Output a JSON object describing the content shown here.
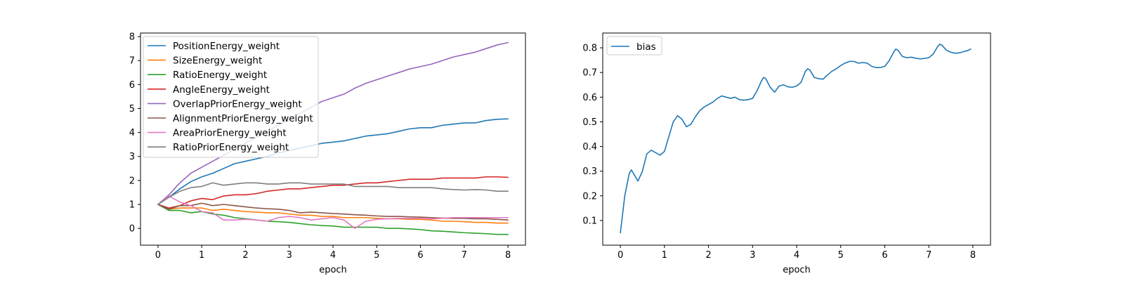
{
  "chart_data": [
    {
      "type": "line",
      "xlabel": "epoch",
      "ylabel": "",
      "xlim": [
        -0.4,
        8.4
      ],
      "ylim": [
        -0.7,
        8.15
      ],
      "xticks": [
        "0",
        "1",
        "2",
        "3",
        "4",
        "5",
        "6",
        "7",
        "8"
      ],
      "yticks": [
        "0",
        "1",
        "2",
        "3",
        "4",
        "5",
        "6",
        "7",
        "8"
      ],
      "grid": false,
      "legend_position": "top-left",
      "series": [
        {
          "name": "PositionEnergy_weight",
          "color": "#1f77b4",
          "x": [
            0,
            0.25,
            0.5,
            0.75,
            1,
            1.25,
            1.5,
            1.75,
            2,
            2.25,
            2.5,
            2.75,
            3,
            3.25,
            3.5,
            3.75,
            4,
            4.25,
            4.5,
            4.75,
            5,
            5.25,
            5.5,
            5.75,
            6,
            6.25,
            6.5,
            6.75,
            7,
            7.25,
            7.5,
            7.75,
            8
          ],
          "y": [
            1.0,
            1.3,
            1.65,
            1.95,
            2.15,
            2.3,
            2.5,
            2.7,
            2.8,
            2.9,
            3.0,
            3.15,
            3.25,
            3.35,
            3.45,
            3.55,
            3.6,
            3.65,
            3.75,
            3.85,
            3.9,
            3.95,
            4.05,
            4.15,
            4.2,
            4.2,
            4.3,
            4.35,
            4.4,
            4.4,
            4.5,
            4.55,
            4.57
          ]
        },
        {
          "name": "SizeEnergy_weight",
          "color": "#ff7f0e",
          "x": [
            0,
            0.25,
            0.5,
            0.75,
            1,
            1.25,
            1.5,
            1.75,
            2,
            2.25,
            2.5,
            2.75,
            3,
            3.25,
            3.5,
            3.75,
            4,
            4.25,
            4.5,
            4.75,
            5,
            5.25,
            5.5,
            5.75,
            6,
            6.25,
            6.5,
            6.75,
            7,
            7.25,
            7.5,
            7.75,
            8
          ],
          "y": [
            1.0,
            0.8,
            0.85,
            0.85,
            0.85,
            0.75,
            0.8,
            0.75,
            0.7,
            0.68,
            0.65,
            0.65,
            0.6,
            0.55,
            0.55,
            0.5,
            0.5,
            0.45,
            0.45,
            0.45,
            0.42,
            0.4,
            0.4,
            0.38,
            0.38,
            0.35,
            0.3,
            0.3,
            0.28,
            0.25,
            0.25,
            0.22,
            0.22
          ]
        },
        {
          "name": "RatioEnergy_weight",
          "color": "#2ca02c",
          "x": [
            0,
            0.25,
            0.5,
            0.75,
            1,
            1.25,
            1.5,
            1.75,
            2,
            2.25,
            2.5,
            2.75,
            3,
            3.25,
            3.5,
            3.75,
            4,
            4.25,
            4.5,
            4.75,
            5,
            5.25,
            5.5,
            5.75,
            6,
            6.25,
            6.5,
            6.75,
            7,
            7.25,
            7.5,
            7.75,
            8
          ],
          "y": [
            1.0,
            0.75,
            0.75,
            0.65,
            0.7,
            0.6,
            0.55,
            0.45,
            0.4,
            0.35,
            0.3,
            0.28,
            0.25,
            0.2,
            0.15,
            0.12,
            0.1,
            0.05,
            0.05,
            0.05,
            0.05,
            0.0,
            0.0,
            -0.02,
            -0.05,
            -0.1,
            -0.12,
            -0.15,
            -0.18,
            -0.2,
            -0.22,
            -0.25,
            -0.25
          ]
        },
        {
          "name": "AngleEnergy_weight",
          "color": "#d62728",
          "x": [
            0,
            0.25,
            0.5,
            0.75,
            1,
            1.25,
            1.5,
            1.75,
            2,
            2.25,
            2.5,
            2.75,
            3,
            3.25,
            3.5,
            3.75,
            4,
            4.25,
            4.5,
            4.75,
            5,
            5.25,
            5.5,
            5.75,
            6,
            6.25,
            6.5,
            6.75,
            7,
            7.25,
            7.5,
            7.75,
            8
          ],
          "y": [
            1.0,
            0.85,
            0.95,
            1.15,
            1.25,
            1.2,
            1.35,
            1.4,
            1.4,
            1.45,
            1.55,
            1.6,
            1.65,
            1.65,
            1.7,
            1.75,
            1.8,
            1.8,
            1.85,
            1.9,
            1.9,
            1.95,
            2.0,
            2.05,
            2.05,
            2.05,
            2.1,
            2.1,
            2.1,
            2.1,
            2.15,
            2.15,
            2.13
          ]
        },
        {
          "name": "OverlapPriorEnergy_weight",
          "color": "#9467bd",
          "x": [
            0,
            0.25,
            0.5,
            0.75,
            1,
            1.25,
            1.5,
            1.75,
            2,
            2.25,
            2.5,
            2.75,
            3,
            3.25,
            3.5,
            3.75,
            4,
            4.25,
            4.5,
            4.75,
            5,
            5.25,
            5.5,
            5.75,
            6,
            6.25,
            6.5,
            6.75,
            7,
            7.25,
            7.5,
            7.75,
            8
          ],
          "y": [
            1.0,
            1.4,
            1.9,
            2.3,
            2.55,
            2.8,
            3.05,
            3.3,
            3.55,
            3.8,
            4.05,
            4.3,
            4.55,
            4.8,
            5.05,
            5.3,
            5.45,
            5.6,
            5.85,
            6.05,
            6.2,
            6.35,
            6.5,
            6.65,
            6.75,
            6.85,
            7.0,
            7.15,
            7.25,
            7.35,
            7.5,
            7.65,
            7.75
          ]
        },
        {
          "name": "AlignmentPriorEnergy_weight",
          "color": "#8c564b",
          "x": [
            0,
            0.25,
            0.5,
            0.75,
            1,
            1.25,
            1.5,
            1.75,
            2,
            2.25,
            2.5,
            2.75,
            3,
            3.25,
            3.5,
            3.75,
            4,
            4.25,
            4.5,
            4.75,
            5,
            5.25,
            5.5,
            5.75,
            6,
            6.25,
            6.5,
            6.75,
            7,
            7.25,
            7.5,
            7.75,
            8
          ],
          "y": [
            1.0,
            0.8,
            0.95,
            0.95,
            1.05,
            0.95,
            1.0,
            0.95,
            0.9,
            0.85,
            0.82,
            0.8,
            0.75,
            0.65,
            0.68,
            0.65,
            0.62,
            0.6,
            0.57,
            0.55,
            0.52,
            0.5,
            0.5,
            0.48,
            0.47,
            0.45,
            0.43,
            0.42,
            0.42,
            0.4,
            0.4,
            0.38,
            0.35
          ]
        },
        {
          "name": "AreaPriorEnergy_weight",
          "color": "#e377c2",
          "x": [
            0,
            0.25,
            0.5,
            0.75,
            1,
            1.25,
            1.5,
            1.75,
            2,
            2.25,
            2.5,
            2.75,
            3,
            3.25,
            3.5,
            3.75,
            4,
            4.25,
            4.5,
            4.75,
            5,
            5.25,
            5.5,
            5.75,
            6,
            6.25,
            6.5,
            6.75,
            7,
            7.25,
            7.5,
            7.75,
            8
          ],
          "y": [
            1.0,
            1.35,
            1.1,
            0.95,
            0.7,
            0.65,
            0.35,
            0.35,
            0.38,
            0.35,
            0.3,
            0.45,
            0.5,
            0.45,
            0.35,
            0.4,
            0.45,
            0.35,
            0.0,
            0.3,
            0.38,
            0.4,
            0.42,
            0.42,
            0.42,
            0.4,
            0.42,
            0.45,
            0.45,
            0.45,
            0.45,
            0.45,
            0.45
          ]
        },
        {
          "name": "RatioPriorEnergy_weight",
          "color": "#7f7f7f",
          "x": [
            0,
            0.25,
            0.5,
            0.75,
            1,
            1.25,
            1.5,
            1.75,
            2,
            2.25,
            2.5,
            2.75,
            3,
            3.25,
            3.5,
            3.75,
            4,
            4.25,
            4.5,
            4.75,
            5,
            5.25,
            5.5,
            5.75,
            6,
            6.25,
            6.5,
            6.75,
            7,
            7.25,
            7.5,
            7.75,
            8
          ],
          "y": [
            1.0,
            1.3,
            1.55,
            1.7,
            1.75,
            1.9,
            1.8,
            1.85,
            1.9,
            1.9,
            1.85,
            1.85,
            1.9,
            1.9,
            1.85,
            1.85,
            1.85,
            1.85,
            1.75,
            1.75,
            1.75,
            1.75,
            1.7,
            1.7,
            1.7,
            1.7,
            1.65,
            1.62,
            1.6,
            1.62,
            1.6,
            1.55,
            1.55
          ]
        }
      ]
    },
    {
      "type": "line",
      "xlabel": "epoch",
      "ylabel": "",
      "xlim": [
        -0.4,
        8.4
      ],
      "ylim": [
        0.0,
        0.86
      ],
      "xticks": [
        "0",
        "1",
        "2",
        "3",
        "4",
        "5",
        "6",
        "7",
        "8"
      ],
      "yticks": [
        "0.1",
        "0.2",
        "0.3",
        "0.4",
        "0.5",
        "0.6",
        "0.7",
        "0.8"
      ],
      "grid": false,
      "legend_position": "top-left",
      "series": [
        {
          "name": "bias",
          "color": "#1f77b4",
          "x": [
            0,
            0.1,
            0.2,
            0.25,
            0.3,
            0.4,
            0.5,
            0.6,
            0.7,
            0.8,
            0.9,
            1.0,
            1.1,
            1.2,
            1.3,
            1.4,
            1.5,
            1.6,
            1.7,
            1.8,
            1.9,
            2.0,
            2.1,
            2.2,
            2.3,
            2.4,
            2.5,
            2.6,
            2.7,
            2.8,
            2.9,
            3.0,
            3.1,
            3.2,
            3.25,
            3.3,
            3.4,
            3.5,
            3.6,
            3.7,
            3.8,
            3.9,
            4.0,
            4.1,
            4.2,
            4.25,
            4.3,
            4.4,
            4.5,
            4.6,
            4.7,
            4.8,
            4.9,
            5.0,
            5.1,
            5.2,
            5.3,
            5.4,
            5.5,
            5.6,
            5.7,
            5.8,
            5.9,
            6.0,
            6.1,
            6.2,
            6.25,
            6.3,
            6.4,
            6.5,
            6.6,
            6.7,
            6.8,
            6.9,
            7.0,
            7.1,
            7.2,
            7.25,
            7.3,
            7.4,
            7.5,
            7.6,
            7.7,
            7.8,
            7.9,
            7.95
          ],
          "y": [
            0.05,
            0.2,
            0.29,
            0.305,
            0.29,
            0.26,
            0.3,
            0.37,
            0.385,
            0.375,
            0.365,
            0.38,
            0.44,
            0.5,
            0.525,
            0.51,
            0.48,
            0.49,
            0.52,
            0.545,
            0.56,
            0.57,
            0.58,
            0.595,
            0.605,
            0.6,
            0.595,
            0.6,
            0.59,
            0.588,
            0.59,
            0.595,
            0.625,
            0.665,
            0.68,
            0.675,
            0.64,
            0.62,
            0.645,
            0.65,
            0.642,
            0.64,
            0.645,
            0.66,
            0.705,
            0.715,
            0.71,
            0.68,
            0.675,
            0.673,
            0.69,
            0.705,
            0.715,
            0.728,
            0.738,
            0.745,
            0.745,
            0.738,
            0.74,
            0.738,
            0.725,
            0.72,
            0.72,
            0.725,
            0.748,
            0.782,
            0.795,
            0.79,
            0.765,
            0.76,
            0.762,
            0.758,
            0.755,
            0.757,
            0.76,
            0.775,
            0.805,
            0.815,
            0.81,
            0.79,
            0.782,
            0.778,
            0.78,
            0.785,
            0.79,
            0.795
          ]
        }
      ]
    }
  ]
}
